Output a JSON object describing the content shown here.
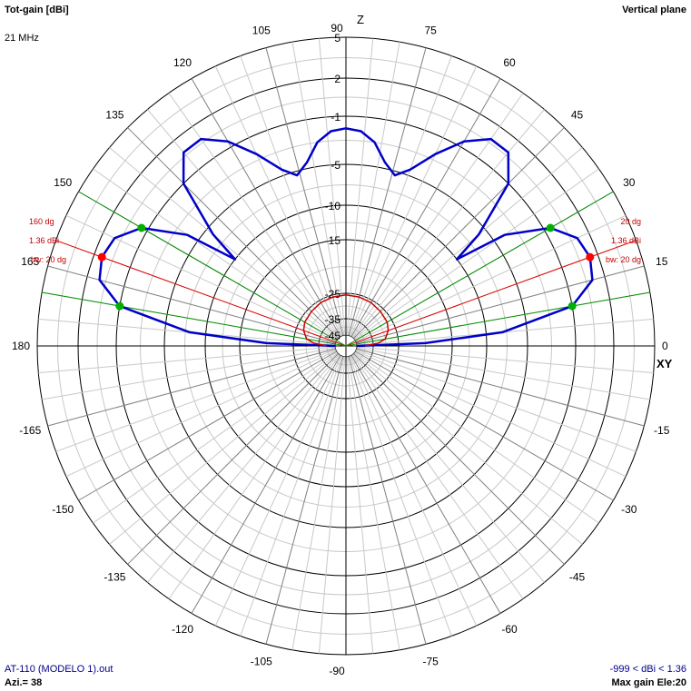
{
  "header": {
    "title": "Tot-gain [dBi]",
    "frequency": "21 MHz",
    "plane": "Vertical plane"
  },
  "footer": {
    "file": "AT-110 (MODELO 1).out",
    "azimuth": "Azi.= 38",
    "gain_range": "-999 < dBi < 1.36",
    "max_gain": "Max gain Ele:20"
  },
  "axes": {
    "z_label": "Z",
    "xy_label": "XY"
  },
  "chart_data": {
    "type": "polar",
    "angle_unit": "deg",
    "angle_ticks": [
      0,
      15,
      30,
      45,
      60,
      75,
      90,
      105,
      120,
      135,
      150,
      165,
      180,
      -165,
      -150,
      -135,
      -120,
      -105,
      -90,
      -75,
      -60,
      -45,
      -30,
      -15
    ],
    "radial_ticks": [
      {
        "label": "5",
        "db": 5
      },
      {
        "label": "2",
        "db": 2
      },
      {
        "label": "-1",
        "db": -1
      },
      {
        "label": "-5",
        "db": -5
      },
      {
        "label": "-10",
        "db": -10
      },
      {
        "label": "-15",
        "db": -15
      },
      {
        "label": "-25",
        "db": -25
      },
      {
        "label": "-35",
        "db": -35
      },
      {
        "label": "-45",
        "db": -45
      }
    ],
    "series": [
      {
        "color": "#0000c8",
        "points": [
          {
            "ang": 0,
            "db": -45
          },
          {
            "ang": 2,
            "db": -20
          },
          {
            "ang": 5,
            "db": -8
          },
          {
            "ang": 10,
            "db": -1
          },
          {
            "ang": 15,
            "db": 1
          },
          {
            "ang": 20,
            "db": 1.36
          },
          {
            "ang": 25,
            "db": 1
          },
          {
            "ang": 30,
            "db": -0.5
          },
          {
            "ang": 35,
            "db": -4
          },
          {
            "ang": 38,
            "db": -10
          },
          {
            "ang": 40,
            "db": -6
          },
          {
            "ang": 45,
            "db": -1
          },
          {
            "ang": 50,
            "db": 0.8
          },
          {
            "ang": 55,
            "db": 0.8
          },
          {
            "ang": 60,
            "db": -0.5
          },
          {
            "ang": 65,
            "db": -2.5
          },
          {
            "ang": 70,
            "db": -4.5
          },
          {
            "ang": 74,
            "db": -5.5
          },
          {
            "ang": 78,
            "db": -4.5
          },
          {
            "ang": 82,
            "db": -3
          },
          {
            "ang": 86,
            "db": -2.2
          },
          {
            "ang": 90,
            "db": -2
          },
          {
            "ang": 94,
            "db": -2.2
          },
          {
            "ang": 98,
            "db": -3
          },
          {
            "ang": 102,
            "db": -4.5
          },
          {
            "ang": 106,
            "db": -5.5
          },
          {
            "ang": 110,
            "db": -4.5
          },
          {
            "ang": 115,
            "db": -2.5
          },
          {
            "ang": 120,
            "db": -0.5
          },
          {
            "ang": 125,
            "db": 0.8
          },
          {
            "ang": 130,
            "db": 0.8
          },
          {
            "ang": 135,
            "db": -1
          },
          {
            "ang": 140,
            "db": -6
          },
          {
            "ang": 142,
            "db": -10
          },
          {
            "ang": 145,
            "db": -4
          },
          {
            "ang": 150,
            "db": -0.5
          },
          {
            "ang": 155,
            "db": 1
          },
          {
            "ang": 160,
            "db": 1.36
          },
          {
            "ang": 165,
            "db": 1
          },
          {
            "ang": 170,
            "db": -1
          },
          {
            "ang": 175,
            "db": -8
          },
          {
            "ang": 178,
            "db": -20
          },
          {
            "ang": 180,
            "db": -45
          }
        ]
      },
      {
        "color": "#c80000",
        "points": [
          {
            "ang": 0,
            "db": -40
          },
          {
            "ang": 5,
            "db": -33
          },
          {
            "ang": 10,
            "db": -30
          },
          {
            "ang": 20,
            "db": -28
          },
          {
            "ang": 30,
            "db": -27
          },
          {
            "ang": 45,
            "db": -26.5
          },
          {
            "ang": 60,
            "db": -26
          },
          {
            "ang": 75,
            "db": -25.8
          },
          {
            "ang": 90,
            "db": -25.6
          },
          {
            "ang": 105,
            "db": -25.8
          },
          {
            "ang": 120,
            "db": -26
          },
          {
            "ang": 135,
            "db": -26.5
          },
          {
            "ang": 150,
            "db": -27
          },
          {
            "ang": 160,
            "db": -28
          },
          {
            "ang": 170,
            "db": -30
          },
          {
            "ang": 175,
            "db": -33
          },
          {
            "ang": 180,
            "db": -40
          }
        ]
      }
    ],
    "beam_lines": [
      {
        "ang": 20,
        "color": "#e00000"
      },
      {
        "ang": 160,
        "color": "#e00000"
      },
      {
        "ang": 10,
        "color": "#009000"
      },
      {
        "ang": 30,
        "color": "#009000"
      },
      {
        "ang": 150,
        "color": "#009000"
      },
      {
        "ang": 170,
        "color": "#009000"
      }
    ],
    "markers": [
      {
        "ang": 20,
        "db": 1.36,
        "color": "#ff0000"
      },
      {
        "ang": 160,
        "db": 1.36,
        "color": "#ff0000"
      },
      {
        "ang": 10,
        "db": -1,
        "color": "#00b000"
      },
      {
        "ang": 30,
        "db": -0.5,
        "color": "#00b000"
      },
      {
        "ang": 150,
        "db": -0.5,
        "color": "#00b000"
      },
      {
        "ang": 170,
        "db": -1,
        "color": "#00b000"
      }
    ],
    "annotations": {
      "right": [
        "20 dg",
        "1.36 dBi",
        "bw: 20 dg"
      ],
      "left": [
        "160 dg",
        "1.36 dBi",
        "bw: 20 dg"
      ],
      "color": "#c00000"
    }
  }
}
